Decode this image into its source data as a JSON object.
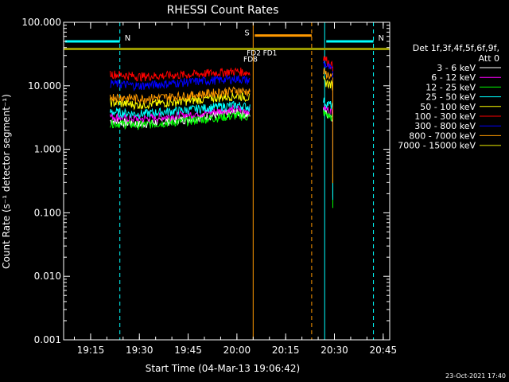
{
  "chart_data": {
    "type": "line",
    "title": "RHESSI Count Rates",
    "xlabel": "Start Time (04-Mar-13 19:06:42)",
    "ylabel": "Count Rate (s⁻¹ detector segment⁻¹)",
    "y_scale": "log",
    "ylim": [
      0.001,
      100
    ],
    "xlim": [
      "19:06:42",
      "20:47:00"
    ],
    "x_ticks": [
      "19:15",
      "19:30",
      "19:45",
      "20:00",
      "20:15",
      "20:30",
      "20:45"
    ],
    "y_ticks": [
      "0.001",
      "0.010",
      "0.100",
      "1.000",
      "10.000",
      "100.000"
    ],
    "legend_placement": "right",
    "legend_header": [
      "Det 1f,3f,4f,5f,6f,9f,",
      "Att 0"
    ],
    "series": [
      {
        "name": "3 - 6 keV",
        "color": "#ffffff",
        "x": [
          "19:21",
          "19:30",
          "19:45",
          "20:00",
          "20:04",
          "20:26:30",
          "20:27",
          "20:28",
          "20:29:30"
        ],
        "values": [
          2.8,
          2.5,
          3.0,
          3.8,
          3.4,
          4.2,
          3.8,
          3.6,
          3.2
        ]
      },
      {
        "name": "6 - 12 keV",
        "color": "#ff00ff",
        "x": [
          "19:21",
          "19:30",
          "19:45",
          "20:00",
          "20:04",
          "20:26:30",
          "20:27",
          "20:28",
          "20:29:30"
        ],
        "values": [
          3.3,
          3.0,
          3.5,
          4.3,
          4.0,
          5.0,
          4.5,
          4.2,
          3.8
        ]
      },
      {
        "name": "12 - 25 keV",
        "color": "#00ff00",
        "x": [
          "19:21",
          "19:30",
          "19:45",
          "20:00",
          "20:04",
          "20:26:30",
          "20:27",
          "20:28",
          "20:29:30"
        ],
        "values": [
          2.6,
          2.4,
          2.8,
          3.4,
          3.2,
          4.0,
          3.6,
          3.4,
          3.1
        ]
      },
      {
        "name": "25 - 50 keV",
        "color": "#00ffff",
        "x": [
          "19:21",
          "19:30",
          "19:45",
          "20:00",
          "20:04",
          "20:26:30",
          "20:27",
          "20:28",
          "20:29:30"
        ],
        "values": [
          3.9,
          3.6,
          4.2,
          5.0,
          4.6,
          6.0,
          5.5,
          5.2,
          4.8
        ]
      },
      {
        "name": "50 - 100 keV",
        "color": "#ffff00",
        "x": [
          "19:21",
          "19:30",
          "19:45",
          "20:00",
          "20:04",
          "20:26:30",
          "20:27",
          "20:28",
          "20:29:30"
        ],
        "values": [
          5.5,
          5.0,
          5.8,
          7.0,
          6.5,
          12.5,
          11.5,
          11.0,
          10.0
        ]
      },
      {
        "name": "100 - 300 keV",
        "color": "#ff0000",
        "x": [
          "19:21",
          "19:30",
          "19:45",
          "20:00",
          "20:04",
          "20:26:30",
          "20:27",
          "20:28",
          "20:29:30"
        ],
        "values": [
          15.5,
          14.0,
          15.0,
          17.0,
          16.0,
          30.0,
          27.0,
          24.0,
          20.0
        ]
      },
      {
        "name": "300 - 800 keV",
        "color": "#0000ff",
        "x": [
          "19:21",
          "19:30",
          "19:45",
          "20:00",
          "20:04",
          "20:26:30",
          "20:27",
          "20:28",
          "20:29:30"
        ],
        "values": [
          11.0,
          10.0,
          11.5,
          13.0,
          12.0,
          24.0,
          22.0,
          20.0,
          17.0
        ]
      },
      {
        "name": "800 - 7000 keV",
        "color": "#ff9900",
        "x": [
          "19:21",
          "19:30",
          "19:45",
          "20:00",
          "20:04",
          "20:26:30",
          "20:27",
          "20:28",
          "20:29:30"
        ],
        "values": [
          6.8,
          6.3,
          7.0,
          8.5,
          8.0,
          17.0,
          16.0,
          15.0,
          13.5
        ]
      },
      {
        "name": "7000 - 15000 keV",
        "color": "#999900",
        "x": [
          "19:06:42",
          "20:45",
          "20:47"
        ],
        "values": [
          38,
          38,
          38
        ]
      }
    ],
    "annotations": [
      {
        "text": "N",
        "color": "#00ffff",
        "x_start": "19:06:42",
        "x_end": "19:24",
        "y": 50
      },
      {
        "text": "N",
        "color": "#00ffff",
        "x_start": "20:27",
        "x_end": "20:42",
        "y": 50
      },
      {
        "text": "S",
        "color": "#ff9900",
        "x_start": "20:05",
        "x_end": "20:23",
        "y": 62
      },
      {
        "text": "FD1",
        "color": "#999900",
        "x": "20:08",
        "y": 30
      },
      {
        "text": "FD2",
        "color": "#999900",
        "x": "20:03",
        "y": 30
      },
      {
        "text": "FD8",
        "color": "#999900",
        "x": "20:02",
        "y": 24
      }
    ],
    "vertical_lines": [
      {
        "x": "19:06:42",
        "color": "#00ffff",
        "style": "solid"
      },
      {
        "x": "19:24",
        "color": "#00ffff",
        "style": "dashed"
      },
      {
        "x": "20:05",
        "color": "#ff9900",
        "style": "solid"
      },
      {
        "x": "20:23",
        "color": "#ff9900",
        "style": "dashed"
      },
      {
        "x": "20:27",
        "color": "#00ffff",
        "style": "solid"
      },
      {
        "x": "20:42",
        "color": "#00ffff",
        "style": "dashed"
      }
    ]
  },
  "timestamp": "23-Oct-2021 17:40"
}
